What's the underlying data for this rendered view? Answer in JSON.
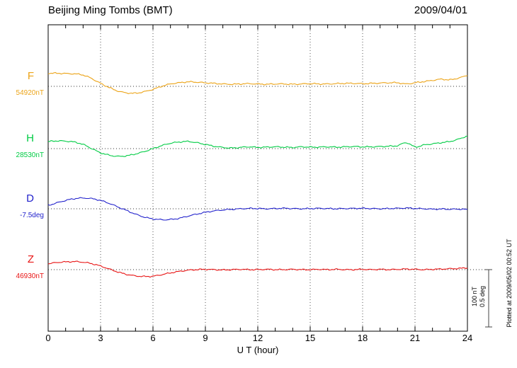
{
  "chart_data": {
    "type": "line",
    "title": "Beijing Ming Tombs (BMT)",
    "date": "2009/04/01",
    "xlabel": "U T (hour)",
    "x_range": [
      0,
      24
    ],
    "x_ticks": [
      0,
      3,
      6,
      9,
      12,
      15,
      18,
      21,
      24
    ],
    "x_minor_tick_step": 1,
    "grid": "dotted-vertical-every-3h",
    "x_step": 0.5,
    "series": [
      {
        "name": "F",
        "baseline_label": "54920nT",
        "unit": "nT",
        "color": "#eca418",
        "values": [
          22,
          22,
          21.5,
          21,
          19,
          13,
          5,
          -2,
          -8,
          -11,
          -11.5,
          -9,
          -5,
          0,
          4,
          6,
          7.5,
          7,
          6,
          5,
          4,
          3.5,
          4,
          4.5,
          4,
          3.5,
          4,
          4,
          3.5,
          4,
          4.5,
          4,
          4,
          4.5,
          5,
          5,
          4.5,
          5,
          5.5,
          6,
          6,
          4,
          6,
          8,
          10,
          12,
          11,
          14,
          18
        ]
      },
      {
        "name": "H",
        "baseline_label": "28530nT",
        "unit": "nT",
        "color": "#00cc44",
        "values": [
          12,
          13,
          12.5,
          11,
          7,
          0,
          -7,
          -11,
          -13,
          -12,
          -9,
          -5,
          0,
          5,
          9,
          11,
          12,
          10,
          7,
          4,
          2,
          1,
          2,
          3,
          2,
          2.5,
          3,
          2.5,
          2,
          3,
          2.5,
          2.5,
          3,
          2.5,
          3,
          3.5,
          3,
          3,
          3.5,
          4,
          5,
          10,
          3,
          6,
          8,
          10,
          12,
          16,
          21
        ]
      },
      {
        "name": "D",
        "baseline_label": "-7.5deg",
        "unit": "deg",
        "color": "#2222cc",
        "values": [
          0.03,
          0.05,
          0.07,
          0.085,
          0.09,
          0.085,
          0.07,
          0.045,
          0.015,
          -0.015,
          -0.045,
          -0.07,
          -0.085,
          -0.092,
          -0.09,
          -0.08,
          -0.062,
          -0.045,
          -0.03,
          -0.018,
          -0.01,
          -0.005,
          0,
          0.003,
          0.002,
          0,
          0.002,
          0.004,
          0.002,
          0,
          0.002,
          0.003,
          0.002,
          0,
          0.002,
          0.003,
          0.004,
          0.002,
          0,
          0.002,
          0.004,
          0.006,
          0.003,
          0,
          -0.003,
          -0.002,
          -0.004,
          -0.003,
          -0.005
        ]
      },
      {
        "name": "Z",
        "baseline_label": "46930nT",
        "unit": "nT",
        "color": "#e81414",
        "values": [
          10,
          12,
          13,
          13.5,
          12.5,
          10,
          6,
          1,
          -4,
          -8,
          -10.5,
          -11.5,
          -11,
          -8.5,
          -5.5,
          -3,
          -1,
          0,
          0.5,
          0,
          -0.5,
          0,
          0.5,
          0,
          0,
          0.5,
          0,
          0,
          0.5,
          0,
          0,
          0.5,
          0,
          0.5,
          0,
          0,
          0.5,
          0,
          0.5,
          0,
          0.5,
          1,
          0.5,
          0,
          0.5,
          1,
          1.5,
          2,
          3
        ]
      }
    ],
    "scale_bar": {
      "labels": [
        "100 nT",
        "0.5 deg"
      ],
      "nT": 100,
      "deg": 0.5
    },
    "footnote": "Plotted at 2009/05/02 00:52 UT"
  }
}
